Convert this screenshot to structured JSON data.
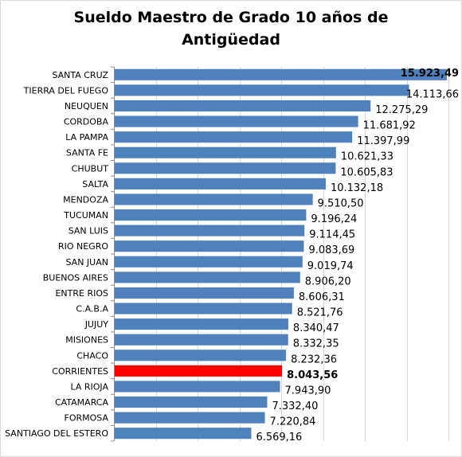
{
  "chart_data": {
    "type": "bar",
    "orientation": "horizontal",
    "title": "Sueldo Maestro de Grado 10 años de Antigüedad",
    "title_lines": [
      "Sueldo Maestro de Grado 10 años de",
      "Antigüedad"
    ],
    "xlim": [
      0,
      16000
    ],
    "grid": true,
    "legend": "none",
    "bar_color": "#4f81bd",
    "highlight_color": "#ff0000",
    "highlight_category": "CORRIENTES",
    "bold_value_categories": [
      "SANTA CRUZ",
      "CORRIENTES"
    ],
    "categories": [
      "SANTA CRUZ",
      "TIERRA DEL FUEGO",
      "NEUQUEN",
      "CORDOBA",
      "LA PAMPA",
      "SANTA FE",
      "CHUBUT",
      "SALTA",
      "MENDOZA",
      "TUCUMAN",
      "SAN LUIS",
      "RIO NEGRO",
      "SAN JUAN",
      "BUENOS AIRES",
      "ENTRE RIOS",
      "C.A.B.A",
      "JUJUY",
      "MISIONES",
      "CHACO",
      "CORRIENTES",
      "LA RIOJA",
      "CATAMARCA",
      "FORMOSA",
      "SANTIAGO DEL ESTERO"
    ],
    "values": [
      15923.49,
      14113.66,
      12275.29,
      11681.92,
      11397.99,
      10621.33,
      10605.83,
      10132.18,
      9510.5,
      9196.24,
      9114.45,
      9083.69,
      9019.74,
      8906.2,
      8606.31,
      8521.76,
      8340.47,
      8332.35,
      8232.36,
      8043.56,
      7943.9,
      7332.4,
      7220.84,
      6569.16
    ],
    "value_labels": [
      "15.923,49",
      "14.113,66",
      "12.275,29",
      "11.681,92",
      "11.397,99",
      "10.621,33",
      "10.605,83",
      "10.132,18",
      "9.510,50",
      "9.196,24",
      "9.114,45",
      "9.083,69",
      "9.019,74",
      "8.906,20",
      "8.606,31",
      "8.521,76",
      "8.340,47",
      "8.332,35",
      "8.232,36",
      "8.043,56",
      "7.943,90",
      "7.332,40",
      "7.220,84",
      "6.569,16"
    ]
  }
}
